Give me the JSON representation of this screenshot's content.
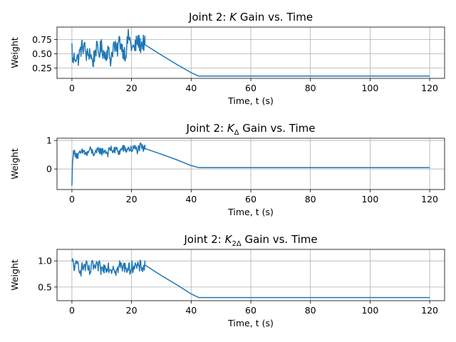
{
  "chart_data": [
    {
      "type": "line",
      "title_prefix": "Joint 2: ",
      "title_math": "K",
      "title_sub": "",
      "title_suffix": " Gain vs. Time",
      "xlabel": "Time, t (s)",
      "ylabel": "Weight",
      "xlim": [
        -5,
        125
      ],
      "ylim": [
        0.07,
        0.97
      ],
      "xticks": [
        0,
        20,
        40,
        60,
        80,
        100,
        120
      ],
      "xtick_labels": [
        "0",
        "20",
        "40",
        "60",
        "80",
        "100",
        "120"
      ],
      "yticks": [
        0.25,
        0.5,
        0.75
      ],
      "ytick_labels": [
        "0.25",
        "0.50",
        "0.75"
      ],
      "grid": true,
      "series": [
        {
          "color": "#1f77b4",
          "noisy_until": 24.5,
          "noisy_points": [
            [
              0,
              0.62
            ],
            [
              0.3,
              0.34
            ],
            [
              1,
              0.48
            ],
            [
              2,
              0.4
            ],
            [
              3,
              0.58
            ],
            [
              4,
              0.65
            ],
            [
              5,
              0.45
            ],
            [
              6,
              0.55
            ],
            [
              7,
              0.33
            ],
            [
              8,
              0.6
            ],
            [
              9,
              0.52
            ],
            [
              10,
              0.62
            ],
            [
              11,
              0.48
            ],
            [
              12,
              0.56
            ],
            [
              13,
              0.4
            ],
            [
              14,
              0.66
            ],
            [
              15,
              0.52
            ],
            [
              16,
              0.74
            ],
            [
              17,
              0.58
            ],
            [
              18,
              0.5
            ],
            [
              19,
              0.82
            ],
            [
              20,
              0.62
            ],
            [
              21,
              0.58
            ],
            [
              22,
              0.74
            ],
            [
              23,
              0.65
            ],
            [
              24,
              0.7
            ],
            [
              24.5,
              0.66
            ]
          ],
          "noise_amplitude": 0.15,
          "points": [
            [
              24.5,
              0.66
            ],
            [
              30,
              0.48
            ],
            [
              35,
              0.32
            ],
            [
              40,
              0.17
            ],
            [
              42.5,
              0.11
            ],
            [
              120,
              0.11
            ]
          ]
        }
      ]
    },
    {
      "type": "line",
      "title_prefix": "Joint 2: ",
      "title_math": "K",
      "title_sub": "Δ",
      "title_suffix": " Gain vs. Time",
      "xlabel": "Time, t (s)",
      "ylabel": "Weight",
      "xlim": [
        -5,
        125
      ],
      "ylim": [
        -0.72,
        1.08
      ],
      "xticks": [
        0,
        20,
        40,
        60,
        80,
        100,
        120
      ],
      "xtick_labels": [
        "0",
        "20",
        "40",
        "60",
        "80",
        "100",
        "120"
      ],
      "yticks": [
        0,
        1
      ],
      "ytick_labels": [
        "0",
        "1"
      ],
      "grid": true,
      "series": [
        {
          "color": "#1f77b4",
          "noisy_until": 24.5,
          "noisy_points": [
            [
              0,
              -0.65
            ],
            [
              0.15,
              0.3
            ],
            [
              0.4,
              0.5
            ],
            [
              1,
              0.58
            ],
            [
              2,
              0.45
            ],
            [
              3,
              0.55
            ],
            [
              4,
              0.62
            ],
            [
              5,
              0.5
            ],
            [
              6,
              0.68
            ],
            [
              7,
              0.58
            ],
            [
              8,
              0.52
            ],
            [
              9,
              0.7
            ],
            [
              10,
              0.6
            ],
            [
              11,
              0.66
            ],
            [
              12,
              0.55
            ],
            [
              13,
              0.72
            ],
            [
              14,
              0.62
            ],
            [
              15,
              0.68
            ],
            [
              16,
              0.58
            ],
            [
              17,
              0.75
            ],
            [
              18,
              0.65
            ],
            [
              19,
              0.72
            ],
            [
              20,
              0.68
            ],
            [
              21,
              0.74
            ],
            [
              22,
              0.66
            ],
            [
              23,
              0.78
            ],
            [
              24,
              0.7
            ],
            [
              24.5,
              0.72
            ]
          ],
          "noise_amplitude": 0.14,
          "points": [
            [
              24.5,
              0.72
            ],
            [
              30,
              0.52
            ],
            [
              35,
              0.33
            ],
            [
              40,
              0.12
            ],
            [
              42.5,
              0.05
            ],
            [
              120,
              0.05
            ]
          ]
        }
      ]
    },
    {
      "type": "line",
      "title_prefix": "Joint 2: ",
      "title_math": "K",
      "title_sub": "2Δ",
      "title_suffix": " Gain vs. Time",
      "xlabel": "Time, t (s)",
      "ylabel": "Weight",
      "xlim": [
        -5,
        125
      ],
      "ylim": [
        0.24,
        1.22
      ],
      "xticks": [
        0,
        20,
        40,
        60,
        80,
        100,
        120
      ],
      "xtick_labels": [
        "0",
        "20",
        "40",
        "60",
        "80",
        "100",
        "120"
      ],
      "yticks": [
        0.5,
        1.0
      ],
      "ytick_labels": [
        "0.5",
        "1.0"
      ],
      "grid": true,
      "series": [
        {
          "color": "#1f77b4",
          "noisy_until": 24.5,
          "noisy_points": [
            [
              0,
              0.92
            ],
            [
              0.3,
              1.0
            ],
            [
              1,
              0.85
            ],
            [
              2,
              0.95
            ],
            [
              3,
              0.82
            ],
            [
              4,
              0.9
            ],
            [
              5,
              0.88
            ],
            [
              6,
              0.78
            ],
            [
              7,
              0.92
            ],
            [
              8,
              0.85
            ],
            [
              9,
              0.9
            ],
            [
              10,
              0.82
            ],
            [
              11,
              0.88
            ],
            [
              12,
              0.92
            ],
            [
              13,
              0.84
            ],
            [
              14,
              0.9
            ],
            [
              15,
              0.8
            ],
            [
              16,
              0.92
            ],
            [
              17,
              0.86
            ],
            [
              18,
              0.9
            ],
            [
              19,
              0.84
            ],
            [
              20,
              0.88
            ],
            [
              21,
              0.92
            ],
            [
              22,
              0.86
            ],
            [
              23,
              0.9
            ],
            [
              24,
              0.88
            ],
            [
              24.5,
              0.92
            ]
          ],
          "noise_amplitude": 0.12,
          "points": [
            [
              24.5,
              0.92
            ],
            [
              30,
              0.72
            ],
            [
              35,
              0.55
            ],
            [
              40,
              0.37
            ],
            [
              42.5,
              0.3
            ],
            [
              120,
              0.3
            ]
          ]
        }
      ]
    }
  ]
}
